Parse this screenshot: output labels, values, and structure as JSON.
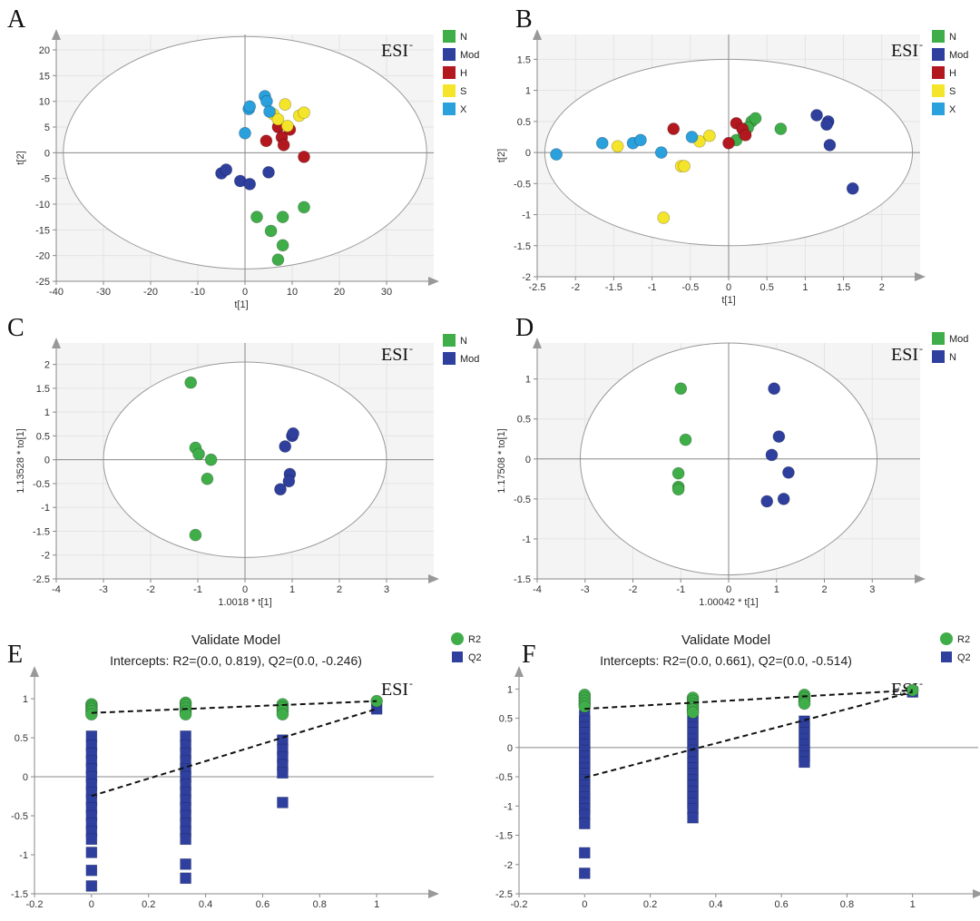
{
  "colors": {
    "N": "#3fae49",
    "Mod": "#2e3f9e",
    "H": "#b3181f",
    "S": "#f5e52a",
    "X": "#2aa0dc",
    "R2": "#3fae49",
    "Q2": "#2e3f9e"
  },
  "chart_data": [
    {
      "panel": "A",
      "type": "scatter",
      "esi": "ESI",
      "esi_sup": "-",
      "xlabel": "t[1]",
      "ylabel": "t[2]",
      "xlim": [
        -40,
        40
      ],
      "ylim": [
        -25,
        23
      ],
      "xticks": [
        "-40",
        "-30",
        "-20",
        "-10",
        "0",
        "10",
        "20",
        "30"
      ],
      "yticks": [
        "20",
        "15",
        "10",
        "5",
        "0",
        "-5",
        "-10",
        "-15",
        "-20",
        "-25"
      ],
      "ellipse": {
        "cx": 0,
        "cy": 0,
        "rx": 38.5,
        "ry": 22.6
      },
      "legend": [
        "N",
        "Mod",
        "H",
        "S",
        "X"
      ],
      "series": [
        {
          "name": "N",
          "points": [
            [
              2.5,
              -12.5
            ],
            [
              5.5,
              -15.2
            ],
            [
              8,
              -12.5
            ],
            [
              12.5,
              -10.6
            ],
            [
              8,
              -18
            ],
            [
              7,
              -20.8
            ]
          ]
        },
        {
          "name": "Mod",
          "points": [
            [
              -5,
              -4
            ],
            [
              -4,
              -3.3
            ],
            [
              -1,
              -5.5
            ],
            [
              1,
              -6.1
            ],
            [
              5,
              -3.8
            ]
          ]
        },
        {
          "name": "H",
          "points": [
            [
              4.5,
              2.3
            ],
            [
              7,
              5
            ],
            [
              7.8,
              3
            ],
            [
              8.2,
              1.5
            ],
            [
              9.5,
              4.5
            ],
            [
              12.5,
              -0.8
            ]
          ]
        },
        {
          "name": "S",
          "points": [
            [
              6,
              7.5
            ],
            [
              7,
              6.5
            ],
            [
              8.5,
              9.4
            ],
            [
              9,
              5.2
            ],
            [
              11.5,
              7.2
            ],
            [
              12.5,
              7.8
            ]
          ]
        },
        {
          "name": "X",
          "points": [
            [
              0,
              3.8
            ],
            [
              0.8,
              8.5
            ],
            [
              1,
              9
            ],
            [
              4.2,
              11
            ],
            [
              4.6,
              10
            ],
            [
              5.2,
              8
            ]
          ]
        }
      ]
    },
    {
      "panel": "B",
      "type": "scatter",
      "esi": "ESI",
      "esi_sup": "-",
      "xlabel": "t[1]",
      "ylabel": "t[2]",
      "xlim": [
        -2.5,
        2.5
      ],
      "ylim": [
        -2,
        1.9
      ],
      "xticks": [
        "-2.5",
        "-2",
        "-1.5",
        "-1",
        "-0.5",
        "0",
        "0.5",
        "1",
        "1.5",
        "2"
      ],
      "yticks": [
        "1.5",
        "1",
        "0.5",
        "0",
        "-0.5",
        "-1",
        "-1.5",
        "-2"
      ],
      "ellipse": {
        "cx": 0,
        "cy": 0,
        "rx": 2.4,
        "ry": 1.5
      },
      "legend": [
        "N",
        "Mod",
        "H",
        "S",
        "X"
      ],
      "series": [
        {
          "name": "N",
          "points": [
            [
              0.1,
              0.2
            ],
            [
              0.2,
              0.3
            ],
            [
              0.3,
              0.5
            ],
            [
              0.35,
              0.55
            ],
            [
              0.68,
              0.38
            ],
            [
              0.25,
              0.4
            ]
          ]
        },
        {
          "name": "Mod",
          "points": [
            [
              1.15,
              0.6
            ],
            [
              1.3,
              0.5
            ],
            [
              1.28,
              0.45
            ],
            [
              1.32,
              0.12
            ],
            [
              1.62,
              -0.58
            ]
          ]
        },
        {
          "name": "H",
          "points": [
            [
              -0.72,
              0.38
            ],
            [
              0,
              0.15
            ],
            [
              0.1,
              0.47
            ],
            [
              0.18,
              0.38
            ],
            [
              0.22,
              0.28
            ]
          ]
        },
        {
          "name": "S",
          "points": [
            [
              -1.45,
              0.1
            ],
            [
              -0.62,
              -0.22
            ],
            [
              -0.58,
              -0.22
            ],
            [
              -0.38,
              0.18
            ],
            [
              -0.25,
              0.27
            ],
            [
              -0.85,
              -1.05
            ]
          ]
        },
        {
          "name": "X",
          "points": [
            [
              -2.25,
              -0.03
            ],
            [
              -1.65,
              0.15
            ],
            [
              -1.25,
              0.15
            ],
            [
              -1.15,
              0.2
            ],
            [
              -0.88,
              0
            ],
            [
              -0.48,
              0.25
            ]
          ]
        }
      ]
    },
    {
      "panel": "C",
      "type": "scatter",
      "esi": "ESI",
      "esi_sup": "-",
      "xlabel": "1.0018 * t[1]",
      "ylabel": "1.13528 * to[1]",
      "xlim": [
        -4,
        4
      ],
      "ylim": [
        -2.5,
        2.45
      ],
      "xticks": [
        "-4",
        "-3",
        "-2",
        "-1",
        "0",
        "1",
        "2",
        "3"
      ],
      "yticks": [
        "2",
        "1.5",
        "1",
        "0.5",
        "0",
        "-0.5",
        "-1",
        "-1.5",
        "-2",
        "-2.5"
      ],
      "ellipse": {
        "cx": 0,
        "cy": 0,
        "rx": 3.0,
        "ry": 2.05
      },
      "legend": [
        "N",
        "Mod"
      ],
      "series": [
        {
          "name": "N",
          "points": [
            [
              -1.15,
              1.62
            ],
            [
              -1.05,
              0.25
            ],
            [
              -0.98,
              0.12
            ],
            [
              -0.72,
              0
            ],
            [
              -0.8,
              -0.4
            ],
            [
              -1.05,
              -1.58
            ]
          ]
        },
        {
          "name": "Mod",
          "points": [
            [
              0.85,
              0.28
            ],
            [
              1.0,
              0.5
            ],
            [
              1.02,
              0.55
            ],
            [
              0.95,
              -0.3
            ],
            [
              0.93,
              -0.45
            ],
            [
              0.75,
              -0.62
            ]
          ]
        }
      ]
    },
    {
      "panel": "D",
      "type": "scatter",
      "esi": "ESI",
      "esi_sup": "-",
      "xlabel": "1.00042 * t[1]",
      "ylabel": "1.17508 * to[1]",
      "xlim": [
        -4,
        4
      ],
      "ylim": [
        -1.5,
        1.45
      ],
      "xticks": [
        "-4",
        "-3",
        "-2",
        "-1",
        "0",
        "1",
        "2",
        "3"
      ],
      "yticks": [
        "1",
        "0.5",
        "0",
        "-0.5",
        "-1",
        "-1.5"
      ],
      "ellipse": {
        "cx": 0,
        "cy": 0,
        "rx": 3.1,
        "ry": 1.45
      },
      "legend": [
        "Mod",
        "N"
      ],
      "legend_colors": [
        "N",
        "Mod"
      ],
      "series": [
        {
          "name": "",
          "color": "N",
          "points": [
            [
              -1.0,
              0.88
            ],
            [
              -0.9,
              0.24
            ],
            [
              -1.05,
              -0.18
            ],
            [
              -1.05,
              -0.35
            ],
            [
              -1.05,
              -0.38
            ]
          ]
        },
        {
          "name": "",
          "color": "Mod",
          "points": [
            [
              0.95,
              0.88
            ],
            [
              1.05,
              0.28
            ],
            [
              0.9,
              0.05
            ],
            [
              1.25,
              -0.17
            ],
            [
              1.15,
              -0.5
            ],
            [
              0.8,
              -0.53
            ]
          ]
        }
      ]
    },
    {
      "panel": "E",
      "type": "scatter",
      "title": "Validate Model",
      "subtitle": "Intercepts: R2=(0.0, 0.819), Q2=(0.0, -0.246)",
      "esi": "ESI",
      "esi_sup": "-",
      "xlim": [
        -0.2,
        1.2
      ],
      "ylim": [
        -1.5,
        1.35
      ],
      "xticks": [
        "-0.2",
        "0",
        "0.2",
        "0.4",
        "0.6",
        "0.8",
        "1"
      ],
      "yticks": [
        "1",
        "0.5",
        "0",
        "-0.5",
        "-1",
        "-1.5"
      ],
      "legend": [
        "R2",
        "Q2"
      ],
      "lines": [
        {
          "name": "R2",
          "from": [
            0,
            0.819
          ],
          "to": [
            1,
            0.97
          ]
        },
        {
          "name": "Q2",
          "from": [
            0,
            -0.246
          ],
          "to": [
            1,
            0.87
          ]
        }
      ],
      "r2_points": [
        [
          0,
          0.93
        ],
        [
          0,
          0.9
        ],
        [
          0,
          0.87
        ],
        [
          0,
          0.84
        ],
        [
          0,
          0.8
        ],
        [
          0.33,
          0.95
        ],
        [
          0.33,
          0.92
        ],
        [
          0.33,
          0.88
        ],
        [
          0.33,
          0.84
        ],
        [
          0.33,
          0.8
        ],
        [
          0.67,
          0.93
        ],
        [
          0.67,
          0.89
        ],
        [
          0.67,
          0.85
        ],
        [
          0.67,
          0.8
        ],
        [
          1,
          0.97
        ]
      ],
      "q2_points": [
        [
          0,
          0.52
        ],
        [
          0,
          0.4
        ],
        [
          0,
          0.3
        ],
        [
          0,
          0.2
        ],
        [
          0,
          0.1
        ],
        [
          0,
          0
        ],
        [
          0,
          -0.1
        ],
        [
          0,
          -0.2
        ],
        [
          0,
          -0.3
        ],
        [
          0,
          -0.4
        ],
        [
          0,
          -0.5
        ],
        [
          0,
          -0.6
        ],
        [
          0,
          -0.7
        ],
        [
          0,
          -0.8
        ],
        [
          0,
          -0.97
        ],
        [
          0,
          -1.2
        ],
        [
          0,
          -1.4
        ],
        [
          0.33,
          0.52
        ],
        [
          0.33,
          0.4
        ],
        [
          0.33,
          0.3
        ],
        [
          0.33,
          0.2
        ],
        [
          0.33,
          0.1
        ],
        [
          0.33,
          0
        ],
        [
          0.33,
          -0.1
        ],
        [
          0.33,
          -0.2
        ],
        [
          0.33,
          -0.3
        ],
        [
          0.33,
          -0.4
        ],
        [
          0.33,
          -0.5
        ],
        [
          0.33,
          -0.6
        ],
        [
          0.33,
          -0.7
        ],
        [
          0.33,
          -0.8
        ],
        [
          0.33,
          -1.12
        ],
        [
          0.33,
          -1.3
        ],
        [
          0.67,
          0.47
        ],
        [
          0.67,
          0.35
        ],
        [
          0.67,
          0.25
        ],
        [
          0.67,
          0.15
        ],
        [
          0.67,
          0.05
        ],
        [
          0.67,
          -0.33
        ],
        [
          1,
          0.87
        ]
      ]
    },
    {
      "panel": "F",
      "type": "scatter",
      "title": "Validate Model",
      "subtitle": "Intercepts: R2=(0.0, 0.661), Q2=(0.0, -0.514)",
      "esi": "ESI",
      "esi_sup": "-",
      "xlim": [
        -0.2,
        1.2
      ],
      "ylim": [
        -2.5,
        1.3
      ],
      "xticks": [
        "-0.2",
        "0",
        "0.2",
        "0.4",
        "0.6",
        "0.8",
        "1"
      ],
      "yticks": [
        "1",
        "0.5",
        "0",
        "-0.5",
        "-1",
        "-1.5",
        "-2",
        "-2.5"
      ],
      "legend": [
        "R2",
        "Q2"
      ],
      "lines": [
        {
          "name": "R2",
          "from": [
            0,
            0.661
          ],
          "to": [
            1,
            0.98
          ]
        },
        {
          "name": "Q2",
          "from": [
            0,
            -0.514
          ],
          "to": [
            1,
            0.95
          ]
        }
      ],
      "r2_points": [
        [
          0,
          0.9
        ],
        [
          0,
          0.85
        ],
        [
          0,
          0.8
        ],
        [
          0,
          0.75
        ],
        [
          0,
          0.7
        ],
        [
          0.33,
          0.85
        ],
        [
          0.33,
          0.8
        ],
        [
          0.33,
          0.75
        ],
        [
          0.33,
          0.7
        ],
        [
          0.33,
          0.65
        ],
        [
          0.33,
          0.6
        ],
        [
          0.67,
          0.9
        ],
        [
          0.67,
          0.85
        ],
        [
          0.67,
          0.8
        ],
        [
          0.67,
          0.75
        ],
        [
          1,
          0.98
        ]
      ],
      "q2_points": [
        [
          0,
          0.55
        ],
        [
          0,
          0.45
        ],
        [
          0,
          0.35
        ],
        [
          0,
          0.25
        ],
        [
          0,
          0.15
        ],
        [
          0,
          0.05
        ],
        [
          0,
          -0.05
        ],
        [
          0,
          -0.15
        ],
        [
          0,
          -0.25
        ],
        [
          0,
          -0.35
        ],
        [
          0,
          -0.45
        ],
        [
          0,
          -0.55
        ],
        [
          0,
          -0.65
        ],
        [
          0,
          -0.75
        ],
        [
          0,
          -0.85
        ],
        [
          0,
          -0.95
        ],
        [
          0,
          -1.05
        ],
        [
          0,
          -1.15
        ],
        [
          0,
          -1.3
        ],
        [
          0,
          -1.8
        ],
        [
          0,
          -2.15
        ],
        [
          0.33,
          0.55
        ],
        [
          0.33,
          0.45
        ],
        [
          0.33,
          0.35
        ],
        [
          0.33,
          0.25
        ],
        [
          0.33,
          0.15
        ],
        [
          0.33,
          0.05
        ],
        [
          0.33,
          -0.05
        ],
        [
          0.33,
          -0.15
        ],
        [
          0.33,
          -0.25
        ],
        [
          0.33,
          -0.35
        ],
        [
          0.33,
          -0.45
        ],
        [
          0.33,
          -0.55
        ],
        [
          0.33,
          -0.65
        ],
        [
          0.33,
          -0.75
        ],
        [
          0.33,
          -0.85
        ],
        [
          0.33,
          -0.95
        ],
        [
          0.33,
          -1.05
        ],
        [
          0.33,
          -1.2
        ],
        [
          0.67,
          0.45
        ],
        [
          0.67,
          0.35
        ],
        [
          0.67,
          0.25
        ],
        [
          0.67,
          0.15
        ],
        [
          0.67,
          0.05
        ],
        [
          0.67,
          -0.05
        ],
        [
          0.67,
          -0.15
        ],
        [
          0.67,
          -0.25
        ],
        [
          1,
          0.95
        ]
      ]
    }
  ]
}
